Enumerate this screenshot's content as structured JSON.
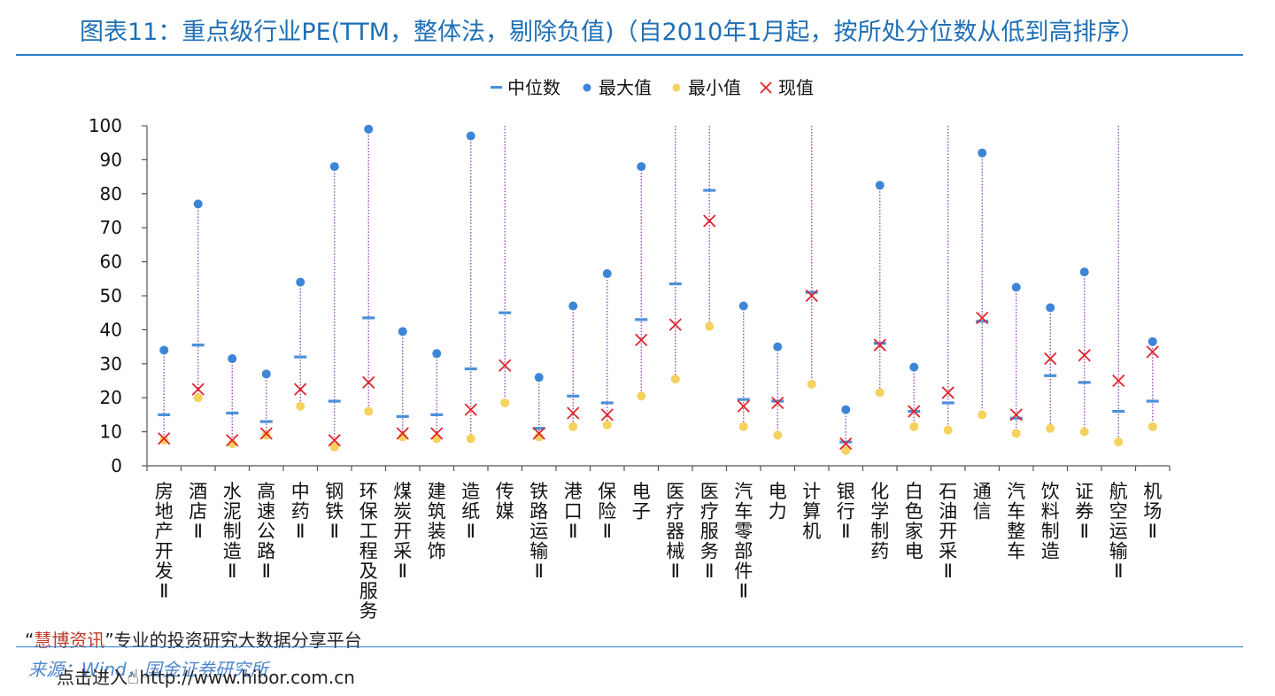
{
  "header": {
    "title": "图表11：重点级行业PE(TTM，整体法，剔除负值)（自2010年1月起，按所处分位数从低到高排序）"
  },
  "footer": {
    "watermark_quote_open": "“",
    "watermark_brand": "慧博资讯",
    "watermark_quote_close": "”",
    "watermark_text": "专业的投资研究大数据分享平台",
    "source": "来源：Wind，国金证券研究所",
    "link_prefix": "点击进入",
    "link_url": "http://www.hibor.com.cn"
  },
  "colors": {
    "median": "#4a90d9",
    "max": "#3d85d6",
    "min": "#f5d15e",
    "current": "#e0242a",
    "range_line": "#8e3fb1",
    "title": "#1f6fb5"
  },
  "chart_data": {
    "type": "scatter",
    "ylim": [
      0,
      100
    ],
    "yticks": [
      0,
      10,
      20,
      30,
      40,
      50,
      60,
      70,
      80,
      90,
      100
    ],
    "legend_position": "top-center",
    "grid": false,
    "legend": [
      "中位数",
      "最大值",
      "最小值",
      "现值"
    ],
    "categories": [
      "房地产开发Ⅱ",
      "酒店Ⅱ",
      "水泥制造Ⅱ",
      "高速公路Ⅱ",
      "中药Ⅱ",
      "钢铁Ⅱ",
      "环保工程及服务Ⅱ",
      "煤炭开采Ⅱ",
      "建筑装饰",
      "造纸Ⅱ",
      "传媒",
      "铁路运输Ⅱ",
      "港口Ⅱ",
      "保险Ⅱ",
      "电子",
      "医疗器械Ⅱ",
      "医疗服务Ⅱ",
      "汽车零部件Ⅱ",
      "电力",
      "计算机",
      "银行Ⅱ",
      "化学制药",
      "白色家电",
      "石油开采Ⅱ",
      "通信",
      "汽车整车",
      "饮料制造",
      "证券Ⅱ",
      "航空运输Ⅱ",
      "机场Ⅱ"
    ],
    "series": [
      {
        "name": "中位数",
        "values": [
          15,
          35.5,
          15.5,
          13,
          32,
          19,
          43.5,
          14.5,
          15,
          28.5,
          45,
          11,
          20.5,
          18.5,
          43,
          53.5,
          81,
          19.5,
          19,
          51,
          7,
          36,
          16,
          18.5,
          42.5,
          14,
          26.5,
          24.5,
          16,
          19
        ]
      },
      {
        "name": "最大值",
        "values": [
          34,
          77,
          31.5,
          27,
          54,
          88,
          99,
          39.5,
          33,
          97,
          100,
          26,
          47,
          56.5,
          88,
          100,
          100,
          47,
          35,
          100,
          16.5,
          82.5,
          29,
          100,
          92,
          52.5,
          46.5,
          57,
          100,
          36.5
        ]
      },
      {
        "name": "最小值",
        "values": [
          7.5,
          20,
          6.5,
          9,
          17.5,
          5.5,
          16,
          8.5,
          8,
          8,
          18.5,
          8.5,
          11.5,
          12,
          20.5,
          25.5,
          41,
          11.5,
          9,
          24,
          4.5,
          21.5,
          11.5,
          10.5,
          15,
          9.5,
          11,
          10,
          7,
          11.5
        ]
      },
      {
        "name": "现值",
        "values": [
          8,
          22.5,
          7.5,
          9.5,
          22.5,
          7.5,
          24.5,
          9.5,
          9.5,
          16.5,
          29.5,
          9.5,
          15.5,
          15,
          37,
          41.5,
          72,
          17.5,
          18.5,
          50,
          6.5,
          35.5,
          16,
          21.5,
          43.5,
          15,
          31.5,
          32.5,
          25,
          33.5
        ]
      }
    ]
  }
}
